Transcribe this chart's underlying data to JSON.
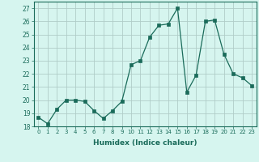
{
  "x": [
    0,
    1,
    2,
    3,
    4,
    5,
    6,
    7,
    8,
    9,
    10,
    11,
    12,
    13,
    14,
    15,
    16,
    17,
    18,
    19,
    20,
    21,
    22,
    23
  ],
  "y": [
    18.7,
    18.2,
    19.3,
    20.0,
    20.0,
    19.9,
    19.2,
    18.6,
    19.2,
    19.9,
    22.7,
    23.0,
    24.8,
    25.7,
    25.8,
    27.0,
    20.6,
    21.9,
    26.0,
    26.1,
    23.5,
    22.0,
    21.7,
    21.1
  ],
  "line_color": "#1a6b5a",
  "marker": "s",
  "marker_size": 2.5,
  "bg_color": "#d6f5ef",
  "grid_color": "#b0cdc8",
  "xlabel": "Humidex (Indice chaleur)",
  "ylim": [
    18,
    27.5
  ],
  "xlim": [
    -0.5,
    23.5
  ],
  "yticks": [
    18,
    19,
    20,
    21,
    22,
    23,
    24,
    25,
    26,
    27
  ],
  "xticks": [
    0,
    1,
    2,
    3,
    4,
    5,
    6,
    7,
    8,
    9,
    10,
    11,
    12,
    13,
    14,
    15,
    16,
    17,
    18,
    19,
    20,
    21,
    22,
    23
  ],
  "label_color": "#1a6b5a",
  "tick_color": "#1a6b5a",
  "spine_color": "#1a6b5a"
}
